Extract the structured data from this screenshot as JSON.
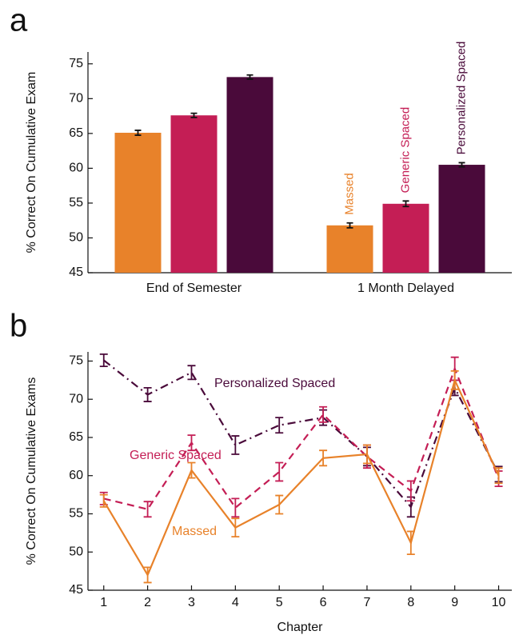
{
  "chart_data": [
    {
      "type": "bar",
      "panel_label": "a",
      "ylabel": "% Correct On Cumulative Exam",
      "categories": [
        "End of Semester",
        "1 Month Delayed"
      ],
      "series": [
        {
          "name": "Massed",
          "color": "#e8822a",
          "values": [
            65.1,
            51.8
          ],
          "errors": [
            0.35,
            0.35
          ]
        },
        {
          "name": "Generic Spaced",
          "color": "#c41e55",
          "values": [
            67.6,
            54.9
          ],
          "errors": [
            0.3,
            0.4
          ]
        },
        {
          "name": "Personalized Spaced",
          "color": "#4a0a3a",
          "values": [
            73.1,
            60.5
          ],
          "errors": [
            0.3,
            0.3
          ]
        }
      ],
      "ylim": [
        45,
        76.7
      ],
      "yticks": [
        45,
        50,
        55,
        60,
        65,
        70,
        75
      ]
    },
    {
      "type": "line",
      "panel_label": "b",
      "ylabel": "% Correct On Cumulative Exams",
      "xlabel": "Chapter",
      "x": [
        1,
        2,
        3,
        4,
        5,
        6,
        7,
        8,
        9,
        10
      ],
      "series": [
        {
          "name": "Personalized Spaced",
          "color": "#4a0a3a",
          "linestyle": "dashdot",
          "values": [
            75.1,
            70.6,
            73.5,
            64.0,
            66.6,
            67.6,
            62.5,
            55.9,
            71.5,
            60.2
          ],
          "errors": [
            0.8,
            0.9,
            0.9,
            1.2,
            1.0,
            1.0,
            1.2,
            1.3,
            1.0,
            1.0
          ]
        },
        {
          "name": "Generic Spaced",
          "color": "#c41e55",
          "linestyle": "dashed",
          "values": [
            57.0,
            55.6,
            64.3,
            55.8,
            60.5,
            68.0,
            62.5,
            58.0,
            74.0,
            59.6
          ],
          "errors": [
            0.8,
            1.0,
            1.0,
            1.2,
            1.2,
            1.0,
            1.5,
            1.3,
            1.5,
            1.0
          ]
        },
        {
          "name": "Massed",
          "color": "#e8822a",
          "linestyle": "solid",
          "values": [
            56.7,
            47.0,
            60.7,
            53.2,
            56.2,
            62.3,
            62.8,
            51.2,
            72.5,
            60.0
          ],
          "errors": [
            0.8,
            1.0,
            1.0,
            1.2,
            1.2,
            1.0,
            1.2,
            1.5,
            1.2,
            1.0
          ]
        }
      ],
      "xlim": [
        0.64,
        10.3
      ],
      "xticks": [
        1,
        2,
        3,
        4,
        5,
        6,
        7,
        8,
        9,
        10
      ],
      "ylim": [
        45,
        76.2
      ],
      "yticks": [
        45,
        50,
        55,
        60,
        65,
        70,
        75
      ]
    }
  ]
}
